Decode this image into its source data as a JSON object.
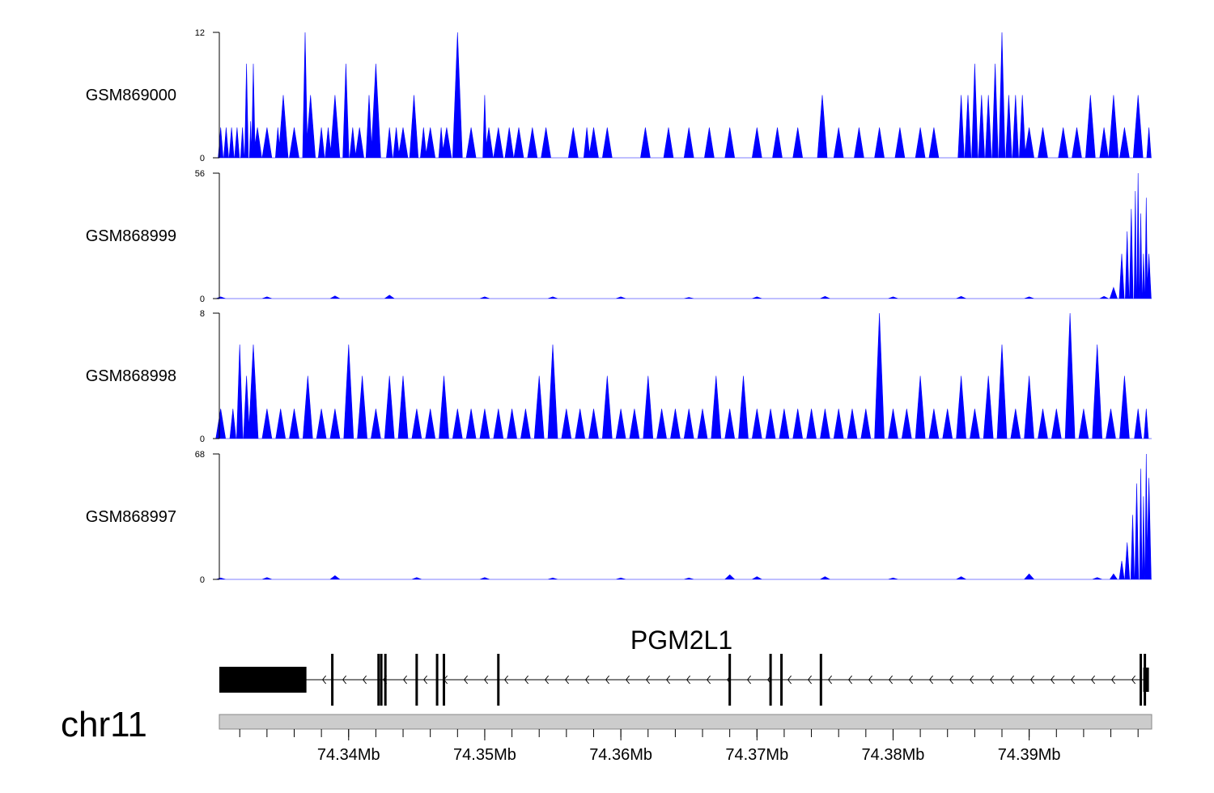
{
  "chart_data": {
    "type": "area",
    "chromosome": "chr11",
    "gene": "PGM2L1",
    "xlim": [
      74.3305,
      74.399
    ],
    "x_ticks": [
      "74.34Mb",
      "74.35Mb",
      "74.36Mb",
      "74.37Mb",
      "74.38Mb",
      "74.39Mb"
    ],
    "x_tick_values": [
      74.34,
      74.35,
      74.36,
      74.37,
      74.38,
      74.39
    ],
    "colors": {
      "signal": "#0000ff",
      "gene": "#000000",
      "ideogram": "#cccccc"
    },
    "series": [
      {
        "name": "GSM869000",
        "ymax_label": "12",
        "ymin_label": "0",
        "ylim": [
          0,
          12
        ],
        "x": [
          74.3306,
          74.331,
          74.3314,
          74.3318,
          74.3322,
          74.3325,
          74.3328,
          74.333,
          74.3333,
          74.334,
          74.3348,
          74.3352,
          74.336,
          74.3368,
          74.3372,
          74.338,
          74.3385,
          74.339,
          74.3398,
          74.3403,
          74.3408,
          74.3415,
          74.342,
          74.343,
          74.3435,
          74.344,
          74.3448,
          74.3455,
          74.346,
          74.3468,
          74.3472,
          74.348,
          74.349,
          74.35,
          74.3503,
          74.351,
          74.3518,
          74.3525,
          74.3535,
          74.3545,
          74.3565,
          74.3575,
          74.358,
          74.359,
          74.3618,
          74.3635,
          74.365,
          74.3665,
          74.368,
          74.37,
          74.3715,
          74.373,
          74.3748,
          74.376,
          74.3775,
          74.379,
          74.3805,
          74.382,
          74.383,
          74.385,
          74.3855,
          74.386,
          74.3865,
          74.387,
          74.3875,
          74.388,
          74.3885,
          74.389,
          74.3895,
          74.39,
          74.391,
          74.3925,
          74.3935,
          74.3945,
          74.3955,
          74.3962,
          74.397,
          74.398,
          74.3988
        ],
        "y": [
          2.9,
          2.9,
          2.9,
          2.9,
          2.9,
          9.0,
          3.5,
          9.0,
          2.9,
          2.9,
          2.9,
          6.0,
          2.9,
          12.0,
          6.0,
          2.9,
          2.9,
          6.0,
          9.0,
          2.9,
          2.9,
          6.0,
          9.0,
          2.9,
          2.9,
          2.9,
          6.0,
          2.9,
          2.9,
          2.9,
          2.9,
          12.0,
          2.9,
          6.0,
          2.9,
          2.9,
          2.9,
          2.9,
          2.9,
          2.9,
          2.9,
          2.9,
          2.9,
          2.9,
          2.9,
          2.9,
          2.9,
          2.9,
          2.9,
          2.9,
          2.9,
          2.9,
          6.0,
          2.9,
          2.9,
          2.9,
          2.9,
          2.9,
          2.9,
          6.0,
          6.0,
          9.0,
          6.0,
          6.0,
          9.0,
          12.0,
          6.0,
          6.0,
          6.0,
          2.9,
          2.9,
          2.9,
          2.9,
          6.0,
          2.9,
          6.0,
          2.9,
          6.0,
          2.9
        ]
      },
      {
        "name": "GSM868999",
        "ymax_label": "56",
        "ymin_label": "0",
        "ylim": [
          0,
          56
        ],
        "x": [
          74.3306,
          74.334,
          74.339,
          74.343,
          74.35,
          74.355,
          74.36,
          74.365,
          74.37,
          74.375,
          74.38,
          74.385,
          74.39,
          74.3955,
          74.3962,
          74.3968,
          74.3972,
          74.3975,
          74.3978,
          74.398,
          74.3982,
          74.3984,
          74.3986,
          74.3988
        ],
        "y": [
          0.8,
          0.8,
          1.2,
          1.5,
          0.8,
          0.8,
          0.8,
          0.5,
          0.8,
          1.0,
          0.8,
          1.0,
          0.8,
          1.0,
          5.0,
          20.0,
          30.0,
          40.0,
          48.0,
          56.0,
          38.0,
          20.0,
          45.0,
          20.0
        ]
      },
      {
        "name": "GSM868998",
        "ymax_label": "8",
        "ymin_label": "0",
        "ylim": [
          0,
          8
        ],
        "x": [
          74.3306,
          74.3315,
          74.332,
          74.3325,
          74.333,
          74.334,
          74.335,
          74.336,
          74.337,
          74.338,
          74.339,
          74.34,
          74.341,
          74.342,
          74.343,
          74.344,
          74.345,
          74.346,
          74.347,
          74.348,
          74.349,
          74.35,
          74.351,
          74.352,
          74.353,
          74.354,
          74.355,
          74.356,
          74.357,
          74.358,
          74.359,
          74.36,
          74.361,
          74.362,
          74.363,
          74.364,
          74.365,
          74.366,
          74.367,
          74.368,
          74.369,
          74.37,
          74.371,
          74.372,
          74.373,
          74.374,
          74.375,
          74.376,
          74.377,
          74.378,
          74.379,
          74.38,
          74.381,
          74.382,
          74.383,
          74.384,
          74.385,
          74.386,
          74.387,
          74.388,
          74.389,
          74.39,
          74.391,
          74.392,
          74.393,
          74.394,
          74.395,
          74.396,
          74.397,
          74.398,
          74.3986
        ],
        "y": [
          1.9,
          1.9,
          6.0,
          4.0,
          6.0,
          1.9,
          1.9,
          1.9,
          4.0,
          1.9,
          1.9,
          6.0,
          4.0,
          1.9,
          4.0,
          4.0,
          1.9,
          1.9,
          4.0,
          1.9,
          1.9,
          1.9,
          1.9,
          1.9,
          1.9,
          4.0,
          6.0,
          1.9,
          1.9,
          1.9,
          4.0,
          1.9,
          1.9,
          4.0,
          1.9,
          1.9,
          1.9,
          1.9,
          4.0,
          1.9,
          4.0,
          1.9,
          1.9,
          1.9,
          1.9,
          1.9,
          1.9,
          1.9,
          1.9,
          1.9,
          8.0,
          1.9,
          1.9,
          4.0,
          1.9,
          1.9,
          4.0,
          1.9,
          4.0,
          6.0,
          1.9,
          4.0,
          1.9,
          1.9,
          8.0,
          1.9,
          6.0,
          1.9,
          4.0,
          1.9,
          1.9
        ]
      },
      {
        "name": "GSM868997",
        "ymax_label": "68",
        "ymin_label": "0",
        "ylim": [
          0,
          68
        ],
        "x": [
          74.3306,
          74.334,
          74.339,
          74.345,
          74.35,
          74.355,
          74.36,
          74.365,
          74.368,
          74.37,
          74.375,
          74.38,
          74.385,
          74.39,
          74.395,
          74.3962,
          74.3968,
          74.3972,
          74.3976,
          74.3979,
          74.3982,
          74.3984,
          74.3986,
          74.3988
        ],
        "y": [
          0.8,
          1.0,
          2.0,
          1.0,
          1.0,
          0.8,
          0.8,
          0.8,
          2.5,
          1.5,
          1.5,
          0.8,
          1.5,
          3.0,
          1.0,
          3.0,
          10.0,
          20.0,
          35.0,
          52.0,
          60.0,
          45.0,
          68.0,
          55.0
        ]
      }
    ],
    "gene_model": {
      "strand": "-",
      "start": 74.3305,
      "end": 74.3985,
      "utr": [
        74.3305,
        74.3369
      ],
      "exons": [
        74.3388,
        74.3422,
        74.3424,
        74.3427,
        74.345,
        74.3465,
        74.347,
        74.351,
        74.368,
        74.371,
        74.3718,
        74.3747,
        74.3982,
        74.3985
      ]
    }
  }
}
